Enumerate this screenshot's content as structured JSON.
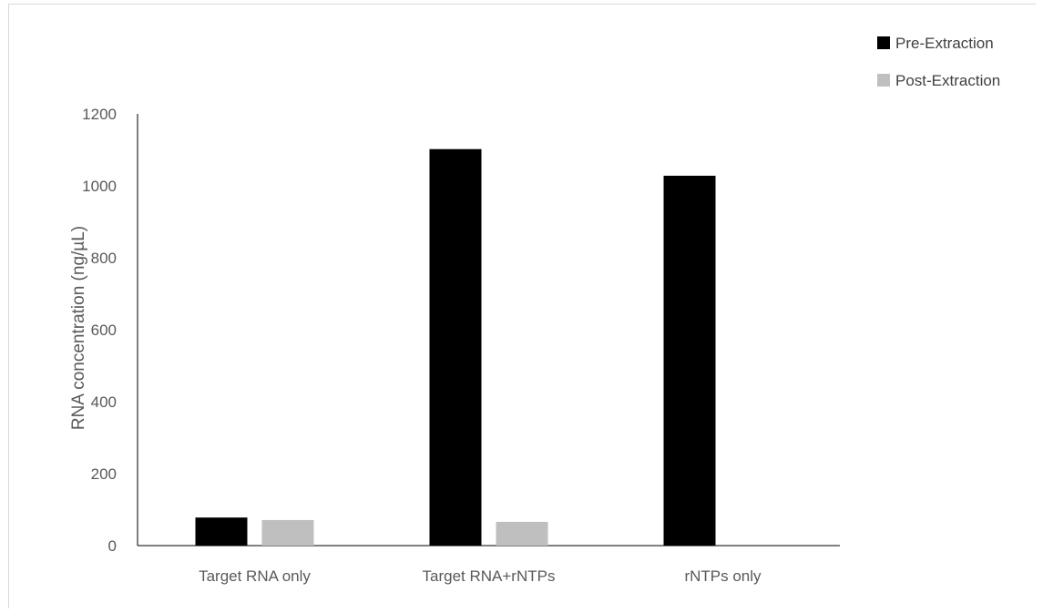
{
  "chart_data": {
    "type": "bar",
    "title": "",
    "xlabel": "",
    "ylabel": "RNA concentration (ng/µL)",
    "categories": [
      "Target RNA only",
      "Target RNA+rNTPs",
      "rNTPs only"
    ],
    "series": [
      {
        "name": "Pre-Extraction",
        "color": "#000000",
        "values": [
          78,
          1102,
          1028
        ]
      },
      {
        "name": "Post-Extraction",
        "color": "#bfbfbf",
        "values": [
          71,
          66,
          0
        ]
      }
    ],
    "ylim": [
      0,
      1200
    ],
    "yticks": [
      "0",
      "200",
      "400",
      "600",
      "800",
      "1000",
      "1200"
    ],
    "grid": false,
    "legend_position": "top-right"
  }
}
